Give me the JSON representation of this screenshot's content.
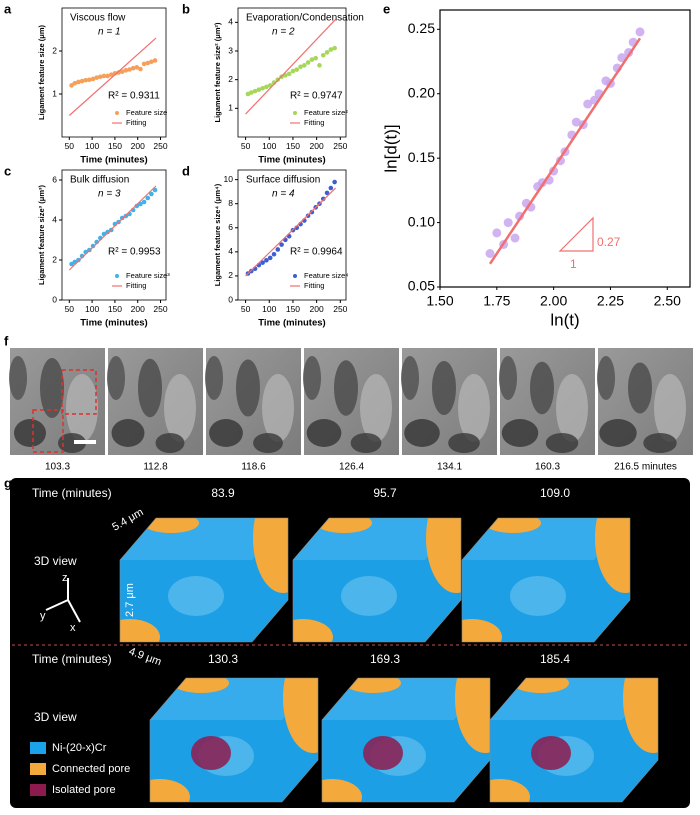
{
  "chart_data": [
    {
      "type": "scatter",
      "label": "a",
      "title": "Viscous flow",
      "annotations": [
        "n = 1",
        "R² = 0.9311"
      ],
      "x_label": "Time (minutes)",
      "y_label": "Ligament feature size (μm)",
      "xlim": [
        34,
        262
      ],
      "xticks": [
        50,
        100,
        150,
        200,
        250
      ],
      "ylim": [
        0,
        3
      ],
      "yticks": [
        1,
        2
      ],
      "legend": "lower right",
      "series": [
        {
          "name": "Feature size",
          "color": "#f5a05a",
          "kind": "points",
          "x": [
            55,
            62,
            70,
            78,
            86,
            94,
            102,
            110,
            118,
            126,
            134,
            142,
            150,
            158,
            166,
            174,
            182,
            190,
            198,
            206,
            214,
            222,
            230,
            238
          ],
          "values": [
            1.2,
            1.25,
            1.28,
            1.3,
            1.32,
            1.33,
            1.35,
            1.38,
            1.4,
            1.42,
            1.42,
            1.45,
            1.48,
            1.5,
            1.52,
            1.55,
            1.57,
            1.6,
            1.62,
            1.58,
            1.7,
            1.72,
            1.75,
            1.78
          ]
        },
        {
          "name": "Fitting",
          "color": "#f0706f",
          "kind": "line",
          "x": [
            50,
            240
          ],
          "values": [
            0.5,
            2.3
          ]
        }
      ]
    },
    {
      "type": "scatter",
      "label": "b",
      "title": "Evaporation/Condensation",
      "annotations": [
        "n = 2",
        "R² = 0.9747"
      ],
      "x_label": "Time (minutes)",
      "y_label": "Ligament feature size² (μm²)",
      "xlim": [
        34,
        262
      ],
      "xticks": [
        50,
        100,
        150,
        200,
        250
      ],
      "ylim": [
        0,
        4.5
      ],
      "yticks": [
        1,
        2,
        3,
        4
      ],
      "legend": "lower right",
      "series": [
        {
          "name": "Feature size²",
          "color": "#a6d65a",
          "kind": "points",
          "x": [
            55,
            62,
            70,
            78,
            86,
            94,
            102,
            110,
            118,
            126,
            134,
            142,
            150,
            158,
            166,
            174,
            182,
            190,
            198,
            206,
            214,
            222,
            230,
            238
          ],
          "values": [
            1.5,
            1.55,
            1.6,
            1.65,
            1.7,
            1.75,
            1.8,
            1.9,
            2.0,
            2.1,
            2.15,
            2.2,
            2.3,
            2.35,
            2.45,
            2.5,
            2.6,
            2.7,
            2.75,
            2.5,
            2.85,
            2.95,
            3.05,
            3.1
          ]
        },
        {
          "name": "Fitting",
          "color": "#f0706f",
          "kind": "line",
          "x": [
            50,
            240
          ],
          "values": [
            0.8,
            4.1
          ]
        }
      ]
    },
    {
      "type": "scatter",
      "label": "c",
      "title": "Bulk diffusion",
      "annotations": [
        "n = 3",
        "R² = 0.9953"
      ],
      "x_label": "Time (minutes)",
      "y_label": "Ligament feature size³ (μm³)",
      "xlim": [
        34,
        262
      ],
      "xticks": [
        50,
        100,
        150,
        200,
        250
      ],
      "ylim": [
        0,
        6.5
      ],
      "yticks": [
        0,
        2,
        4,
        6
      ],
      "legend": "lower right",
      "series": [
        {
          "name": "Feature size³",
          "color": "#3fb2ea",
          "kind": "points",
          "x": [
            55,
            62,
            70,
            78,
            86,
            94,
            102,
            110,
            118,
            126,
            134,
            142,
            150,
            158,
            166,
            174,
            182,
            190,
            198,
            206,
            214,
            222,
            230,
            238
          ],
          "values": [
            1.8,
            1.9,
            2.0,
            2.2,
            2.4,
            2.5,
            2.7,
            2.9,
            3.1,
            3.3,
            3.4,
            3.5,
            3.8,
            3.9,
            4.1,
            4.2,
            4.3,
            4.5,
            4.7,
            4.8,
            4.9,
            5.1,
            5.3,
            5.5
          ]
        },
        {
          "name": "Fitting",
          "color": "#f0706f",
          "kind": "line",
          "x": [
            50,
            240
          ],
          "values": [
            1.5,
            5.7
          ]
        }
      ]
    },
    {
      "type": "scatter",
      "label": "d",
      "title": "Surface diffusion",
      "annotations": [
        "n = 4",
        "R² = 0.9964"
      ],
      "x_label": "Time (minutes)",
      "y_label": "Ligament feature size⁴ (μm⁴)",
      "xlim": [
        34,
        262
      ],
      "xticks": [
        50,
        100,
        150,
        200,
        250
      ],
      "ylim": [
        0,
        10.8
      ],
      "yticks": [
        0,
        2,
        4,
        6,
        8,
        10
      ],
      "legend": "lower right",
      "series": [
        {
          "name": "Feature size⁴",
          "color": "#3c5fd6",
          "kind": "points",
          "x": [
            55,
            62,
            70,
            78,
            86,
            94,
            102,
            110,
            118,
            126,
            134,
            142,
            150,
            158,
            166,
            174,
            182,
            190,
            198,
            206,
            214,
            222,
            230,
            238
          ],
          "values": [
            2.2,
            2.4,
            2.6,
            2.9,
            3.1,
            3.3,
            3.5,
            3.8,
            4.2,
            4.6,
            5.0,
            5.3,
            5.8,
            6.0,
            6.3,
            6.6,
            7.0,
            7.3,
            7.7,
            8.0,
            8.4,
            8.9,
            9.3,
            9.8
          ]
        },
        {
          "name": "Fitting",
          "color": "#f0706f",
          "kind": "line",
          "x": [
            50,
            240
          ],
          "values": [
            2.0,
            9.3
          ]
        }
      ]
    },
    {
      "type": "scatter",
      "label": "e",
      "annotations": [
        "0.27",
        "1"
      ],
      "x_label": "ln(t)",
      "y_label": "ln[d(t)]",
      "xlim": [
        1.5,
        2.6
      ],
      "xticks": [
        {
          "value": 1.5,
          "label": "1.50"
        },
        1.75,
        {
          "value": 2,
          "label": "2.00"
        },
        2.25,
        {
          "value": 2.5,
          "label": "2.50"
        }
      ],
      "ylim": [
        0.05,
        0.265
      ],
      "yticks": [
        0.05,
        {
          "value": 0.1,
          "label": "0.10"
        },
        0.15,
        {
          "value": 0.2,
          "label": "0.20"
        },
        0.25
      ],
      "series": [
        {
          "color": "#c9a6f0",
          "kind": "points",
          "x": [
            1.72,
            1.75,
            1.78,
            1.8,
            1.83,
            1.85,
            1.88,
            1.9,
            1.93,
            1.95,
            1.98,
            2.0,
            2.03,
            2.05,
            2.08,
            2.1,
            2.13,
            2.15,
            2.18,
            2.2,
            2.23,
            2.25,
            2.28,
            2.3,
            2.33,
            2.35,
            2.38
          ],
          "values": [
            0.076,
            0.092,
            0.083,
            0.1,
            0.088,
            0.105,
            0.115,
            0.112,
            0.128,
            0.131,
            0.133,
            0.14,
            0.148,
            0.155,
            0.168,
            0.178,
            0.176,
            0.192,
            0.195,
            0.2,
            0.21,
            0.208,
            0.22,
            0.228,
            0.232,
            0.24,
            0.248
          ]
        },
        {
          "color": "#f0706f",
          "kind": "line",
          "x": [
            1.72,
            2.38
          ],
          "values": [
            0.068,
            0.243
          ]
        }
      ]
    }
  ],
  "panel_f": {
    "label": "f",
    "labels": [
      "103.3",
      "112.8",
      "118.6",
      "126.4",
      "134.1",
      "160.3",
      "216.5 minutes"
    ]
  },
  "panel_g": {
    "label": "g",
    "time_label": "Time (minutes)",
    "view_label": "3D view",
    "rows": [
      {
        "times": [
          "83.9",
          "95.7",
          "109.0"
        ]
      },
      {
        "times": [
          "130.3",
          "169.3",
          "185.4"
        ]
      }
    ],
    "dims": [
      "5.4 μm",
      "2.7 μm",
      "4.9 μm"
    ],
    "axes": [
      "z",
      "y",
      "x"
    ],
    "legend": [
      "Ni-(20-x)Cr",
      "Connected pore",
      "Isolated pore"
    ]
  }
}
